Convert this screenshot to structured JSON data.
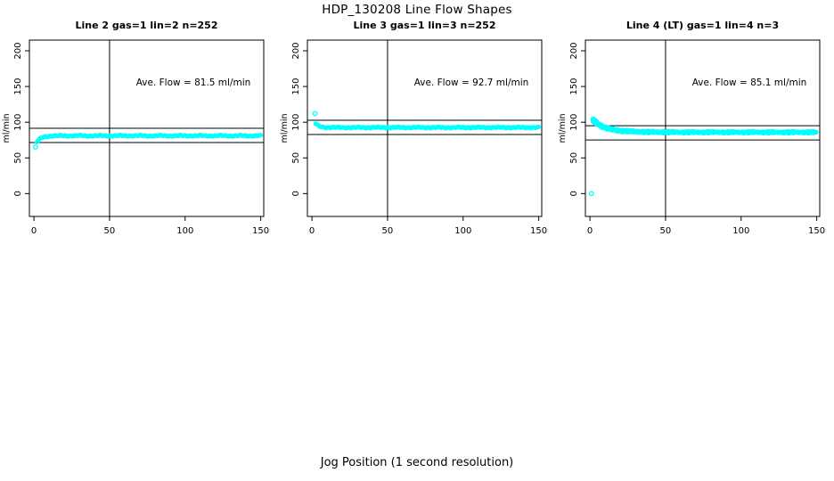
{
  "figure": {
    "title": "HDP_130208  Line Flow Shapes",
    "xlabel": "Jog Position (1 second resolution)"
  },
  "chart_data": [
    {
      "type": "scatter",
      "title": "Line 2 gas=1 lin=2 n=252",
      "ylabel": "ml/min",
      "annotation": "Ave. Flow =  81.5  ml/min",
      "ave_flow_ml_min": 81.5,
      "n": 252,
      "marker": "open-circle",
      "point_color": "#00ffff",
      "x_ticks": [
        0,
        50,
        100,
        150
      ],
      "y_ticks": [
        0,
        50,
        100,
        150,
        200
      ],
      "xlim": [
        -3,
        152
      ],
      "ylim": [
        -32,
        215
      ],
      "ref_hlines": [
        91.5,
        71.5
      ],
      "ref_vline": 50,
      "outliers": [
        [
          1,
          65
        ]
      ],
      "runs": [
        {
          "x_start": 2,
          "x_end": 150,
          "step": 0.5,
          "settle": 81,
          "amp": -9,
          "tau": 3
        }
      ],
      "jitter": 0.55,
      "shape_note": "flow rises quickly from ~72 at x=2 to a flat plateau ~81 ml/min through x=150; single low outlier near (1,65)"
    },
    {
      "type": "scatter",
      "title": "Line 3 gas=1 lin=3 n=252",
      "ylabel": "ml/min",
      "annotation": "Ave. Flow =  92.7  ml/min",
      "ave_flow_ml_min": 92.7,
      "n": 252,
      "marker": "open-circle",
      "point_color": "#00ffff",
      "x_ticks": [
        0,
        50,
        100,
        150
      ],
      "y_ticks": [
        0,
        50,
        100,
        150,
        200
      ],
      "xlim": [
        -3,
        152
      ],
      "ylim": [
        -32,
        215
      ],
      "ref_hlines": [
        102.7,
        82.7
      ],
      "ref_vline": 50,
      "outliers": [
        [
          2,
          112
        ]
      ],
      "runs": [
        {
          "x_start": 2.5,
          "x_end": 150,
          "step": 0.5,
          "settle": 92.5,
          "amp": 5.5,
          "tau": 2.2
        }
      ],
      "jitter": 0.55,
      "shape_note": "flow starts ~98 at x=2.5, settles fast to flat plateau ~92.5 ml/min through x=150; single high outlier near (2,112)"
    },
    {
      "type": "scatter",
      "title": "Line 4 (LT) gas=1 lin=4 n=3",
      "ylabel": "ml/min",
      "annotation": "Ave. Flow =  85.1  ml/min",
      "ave_flow_ml_min": 85.1,
      "n": 3,
      "marker": "open-circle",
      "point_color": "#00ffff",
      "x_ticks": [
        0,
        50,
        100,
        150
      ],
      "y_ticks": [
        0,
        50,
        100,
        150,
        200
      ],
      "xlim": [
        -3,
        152
      ],
      "ylim": [
        -32,
        215
      ],
      "ref_hlines": [
        95.1,
        75.1
      ],
      "ref_vline": 50,
      "outliers": [
        [
          1,
          0
        ]
      ],
      "runs": [
        {
          "x_start": 2,
          "x_end": 150,
          "step": 0.6,
          "settle": 85.2,
          "amp": 20,
          "tau": 9
        },
        {
          "x_start": 2,
          "x_end": 150,
          "step": 0.6,
          "settle": 85.9,
          "amp": 17,
          "tau": 7
        },
        {
          "x_start": 2,
          "x_end": 150,
          "step": 0.6,
          "settle": 86.5,
          "amp": 14,
          "tau": 11
        }
      ],
      "jitter": 0.45,
      "shape_note": "three overlapping runs decay exponentially from ~100-105 at x=2 down to flat plateau ~85-86 ml/min by x~35; single outlier at (1,0)"
    }
  ]
}
